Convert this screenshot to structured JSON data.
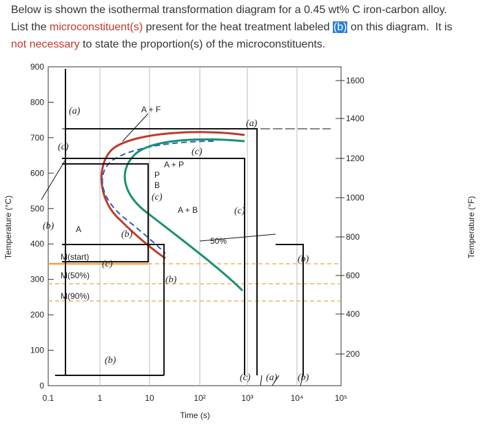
{
  "question": {
    "line1": "Below is shown the isothermal transformation diagram for a 0.45 wt% C iron-carbon alloy.",
    "line2": {
      "before": "List the ",
      "term": "microconstituent(s)",
      "middle": " present for the heat treatment labeled ",
      "highlight": "(b)",
      "after": " on this diagram.  It is"
    },
    "line3": {
      "term": "not necessary",
      "after": " to state the proportion(s) of the microconstituents."
    }
  },
  "diagram": {
    "y_label": "Temperature (°C)",
    "y2_label": "Temperature (°F)",
    "x_label": "Time (s)",
    "y_ticks": [
      "0",
      "100",
      "200",
      "300",
      "400",
      "500",
      "600",
      "700",
      "800",
      "900"
    ],
    "y2_ticks": [
      "200",
      "400",
      "600",
      "800",
      "1000",
      "1200",
      "1400",
      "1600"
    ],
    "x_ticks": [
      "0.1",
      "1",
      "10",
      "10²",
      "10³",
      "10⁴",
      "10⁵"
    ],
    "labels": [
      "(a)",
      "(c)",
      "(b)",
      "A",
      "A + F",
      "(a)",
      "(c)",
      "A + P",
      "P",
      "B",
      "(c)",
      "A + B",
      "(c)",
      "(b)",
      "50%",
      "M(start)",
      "(c)",
      "M(50%)",
      "M(90%)",
      "(b)",
      "(b)",
      "(b)",
      "(c)",
      "(a)",
      "(b)"
    ]
  }
}
